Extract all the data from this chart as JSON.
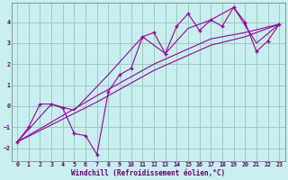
{
  "xlabel": "Windchill (Refroidissement éolien,°C)",
  "bg_color": "#c8eef0",
  "line_color": "#990099",
  "grid_color": "#99ccbb",
  "xlim": [
    -0.5,
    23.5
  ],
  "ylim": [
    -2.6,
    4.9
  ],
  "xticks": [
    0,
    1,
    2,
    3,
    4,
    5,
    6,
    7,
    8,
    9,
    10,
    11,
    12,
    13,
    14,
    15,
    16,
    17,
    18,
    19,
    20,
    21,
    22,
    23
  ],
  "yticks": [
    -2,
    -1,
    0,
    1,
    2,
    3,
    4
  ],
  "series_main": [
    [
      0,
      -1.7
    ],
    [
      1,
      -1.0
    ],
    [
      2,
      0.1
    ],
    [
      3,
      0.1
    ],
    [
      4,
      -0.1
    ],
    [
      5,
      -1.3
    ],
    [
      6,
      -1.4
    ],
    [
      7,
      -2.3
    ],
    [
      8,
      0.7
    ],
    [
      9,
      1.5
    ],
    [
      10,
      1.8
    ],
    [
      11,
      3.3
    ],
    [
      12,
      3.5
    ],
    [
      13,
      2.5
    ],
    [
      14,
      3.8
    ],
    [
      15,
      4.4
    ],
    [
      16,
      3.6
    ],
    [
      17,
      4.1
    ],
    [
      18,
      3.8
    ],
    [
      19,
      4.7
    ],
    [
      20,
      4.0
    ],
    [
      21,
      2.6
    ],
    [
      22,
      3.1
    ],
    [
      23,
      3.9
    ]
  ],
  "series_trend1": [
    [
      0,
      -1.7
    ],
    [
      3,
      0.1
    ],
    [
      5,
      -0.2
    ],
    [
      8,
      1.5
    ],
    [
      11,
      3.3
    ],
    [
      13,
      2.5
    ],
    [
      15,
      3.7
    ],
    [
      17,
      4.1
    ],
    [
      19,
      4.7
    ],
    [
      21,
      3.0
    ],
    [
      23,
      3.9
    ]
  ],
  "series_trend2": [
    [
      0,
      -1.7
    ],
    [
      7,
      0.5
    ],
    [
      12,
      2.0
    ],
    [
      17,
      3.2
    ],
    [
      20,
      3.5
    ],
    [
      23,
      3.9
    ]
  ],
  "series_trend3": [
    [
      0,
      -1.7
    ],
    [
      7,
      0.2
    ],
    [
      12,
      1.7
    ],
    [
      17,
      2.9
    ],
    [
      20,
      3.3
    ],
    [
      23,
      3.9
    ]
  ]
}
